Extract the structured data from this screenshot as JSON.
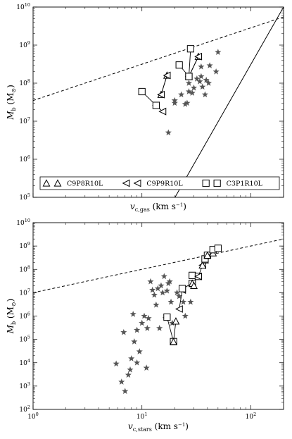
{
  "chart_data": [
    {
      "type": "scatter",
      "xscale": "log",
      "yscale": "log",
      "xlim": [
        1,
        200
      ],
      "ylim": [
        100000,
        10000000000
      ],
      "xlabel": "v_c,gas (km s^-1)",
      "ylabel": "M_b (M_⊙)",
      "x_tick_labels": [],
      "y_tick_labels": [
        "10^5",
        "10^6",
        "10^7",
        "10^8",
        "10^9",
        "10^10"
      ],
      "grid": false,
      "legend_position": "bottom",
      "legend": [
        {
          "name": "C9P8R10L",
          "marker": "triangle-up"
        },
        {
          "name": "C9P9R10L",
          "marker": "triangle-left"
        },
        {
          "name": "C3P1R10L",
          "marker": "square"
        }
      ],
      "observations": {
        "marker": "star",
        "points": [
          [
            17.5,
            5000000
          ],
          [
            20,
            30000000
          ],
          [
            20,
            35000000
          ],
          [
            23,
            50000000
          ],
          [
            25,
            28000000
          ],
          [
            26,
            30000000
          ],
          [
            27,
            60000000
          ],
          [
            27,
            100000000
          ],
          [
            29,
            55000000
          ],
          [
            30,
            75000000
          ],
          [
            32,
            130000000
          ],
          [
            34,
            110000000
          ],
          [
            35,
            150000000
          ],
          [
            35,
            270000000
          ],
          [
            36,
            80000000
          ],
          [
            38,
            50000000
          ],
          [
            39,
            120000000
          ],
          [
            41,
            100000000
          ],
          [
            42,
            290000000
          ],
          [
            48,
            200000000
          ],
          [
            50,
            650000000
          ]
        ]
      },
      "simulations": [
        {
          "name": "C9P8R10L",
          "marker": "triangle-up",
          "points": [
            [
              15,
              50000000
            ],
            [
              17,
              160000000
            ]
          ]
        },
        {
          "name": "C9P8R10L",
          "marker": "triangle-up",
          "points": [
            [
              27,
              150000000
            ],
            [
              33,
              500000000
            ]
          ]
        },
        {
          "name": "C9P9R10L",
          "marker": "triangle-left",
          "points": [
            [
              13.5,
              26000000
            ],
            [
              15.5,
              18000000
            ]
          ]
        },
        {
          "name": "C9P9R10L",
          "marker": "triangle-left",
          "points": [
            [
              15,
              50000000
            ],
            [
              17,
              160000000
            ]
          ]
        },
        {
          "name": "C9P9R10L",
          "marker": "triangle-left",
          "points": [
            [
              27,
              150000000
            ],
            [
              33,
              500000000
            ]
          ]
        },
        {
          "name": "C3P1R10L",
          "marker": "square",
          "points": [
            [
              10,
              60000000
            ],
            [
              13.5,
              26000000
            ]
          ]
        },
        {
          "name": "C3P1R10L",
          "marker": "square",
          "points": [
            [
              22,
              300000000
            ],
            [
              27,
              150000000
            ]
          ]
        },
        {
          "name": "C3P1R10L",
          "marker": "square",
          "points": [
            [
              28,
              800000000
            ],
            [
              27,
              150000000
            ]
          ]
        }
      ],
      "fit_line": {
        "style": "solid",
        "points": [
          [
            10,
            3000
          ],
          [
            200,
            10000000000
          ]
        ]
      },
      "reference_line": {
        "style": "dashed",
        "points": [
          [
            1,
            35000000
          ],
          [
            200,
            5500000000
          ]
        ]
      }
    },
    {
      "type": "scatter",
      "xscale": "log",
      "yscale": "log",
      "xlim": [
        1,
        200
      ],
      "ylim": [
        100,
        10000000000
      ],
      "xlabel": "v_c,stars (km s^-1)",
      "ylabel": "M_b (M_⊙)",
      "x_tick_labels": [
        "10^0",
        "10^1",
        "10^2"
      ],
      "y_tick_labels": [
        "10^2",
        "10^3",
        "10^4",
        "10^5",
        "10^6",
        "10^7",
        "10^8",
        "10^9",
        "10^10"
      ],
      "grid": false,
      "observations": {
        "marker": "star",
        "points": [
          [
            5.8,
            9000
          ],
          [
            6.5,
            1500
          ],
          [
            6.8,
            200000
          ],
          [
            7,
            600
          ],
          [
            7.5,
            3000
          ],
          [
            7.8,
            5000
          ],
          [
            8,
            15000
          ],
          [
            8.3,
            1200000
          ],
          [
            8.5,
            80000
          ],
          [
            9,
            10000
          ],
          [
            9,
            250000
          ],
          [
            9.5,
            30000
          ],
          [
            10,
            500000
          ],
          [
            10.5,
            1000000
          ],
          [
            11,
            6000
          ],
          [
            11.2,
            300000
          ],
          [
            11.5,
            800000
          ],
          [
            12,
            30000000
          ],
          [
            12.5,
            13000000
          ],
          [
            13,
            8000000
          ],
          [
            13.5,
            3000000
          ],
          [
            14,
            15000000
          ],
          [
            14.5,
            300000
          ],
          [
            15,
            20000000
          ],
          [
            15.5,
            10000000
          ],
          [
            16,
            50000000
          ],
          [
            16.5,
            800000
          ],
          [
            17,
            12000000
          ],
          [
            17.5,
            25000000
          ],
          [
            18,
            30000000
          ],
          [
            18.5,
            4000000
          ],
          [
            19,
            500000
          ],
          [
            21,
            10000000
          ],
          [
            22,
            7000000
          ],
          [
            24,
            4000000
          ],
          [
            25,
            1000000
          ],
          [
            28,
            4000000
          ]
        ]
      },
      "simulations": [
        {
          "name": "C3P1R10L",
          "marker": "square",
          "points": [
            [
              17,
              900000
            ],
            [
              19.5,
              80000
            ]
          ]
        },
        {
          "name": "C9P8R10L",
          "marker": "triangle-up",
          "points": [
            [
              19.5,
              80000
            ],
            [
              20.5,
              600000
            ]
          ]
        },
        {
          "name": "C9P9R10L",
          "marker": "triangle-left",
          "points": [
            [
              22,
              2000000
            ],
            [
              23.5,
              13000000
            ]
          ]
        },
        {
          "name": "C3P1R10L",
          "marker": "square",
          "points": [
            [
              23.5,
              15000000
            ],
            [
              29,
              25000000
            ]
          ]
        },
        {
          "name": "C9P8R10L",
          "marker": "triangle-up",
          "points": [
            [
              29,
              25000000
            ],
            [
              30,
              20000000
            ]
          ]
        },
        {
          "name": "C3P1R10L",
          "marker": "square",
          "points": [
            [
              29,
              55000000
            ],
            [
              33,
              50000000
            ]
          ]
        },
        {
          "name": "C9P9R10L",
          "marker": "triangle-left",
          "points": [
            [
              33,
              50000000
            ],
            [
              36,
              150000000
            ]
          ]
        },
        {
          "name": "C9P8R10L",
          "marker": "triangle-up",
          "points": [
            [
              36,
              150000000
            ],
            [
              38,
              250000000
            ]
          ]
        },
        {
          "name": "C3P1R10L",
          "marker": "square",
          "points": [
            [
              38,
              280000000
            ],
            [
              40,
              400000000
            ]
          ]
        },
        {
          "name": "C9P8R10L",
          "marker": "triangle-up",
          "points": [
            [
              40,
              400000000
            ],
            [
              45,
              500000000
            ]
          ]
        },
        {
          "name": "C3P1R10L",
          "marker": "square",
          "points": [
            [
              45,
              700000000
            ],
            [
              50,
              800000000
            ]
          ]
        }
      ],
      "reference_line": {
        "style": "dashed",
        "points": [
          [
            1,
            10000000
          ],
          [
            200,
            2000000000
          ]
        ]
      }
    }
  ]
}
